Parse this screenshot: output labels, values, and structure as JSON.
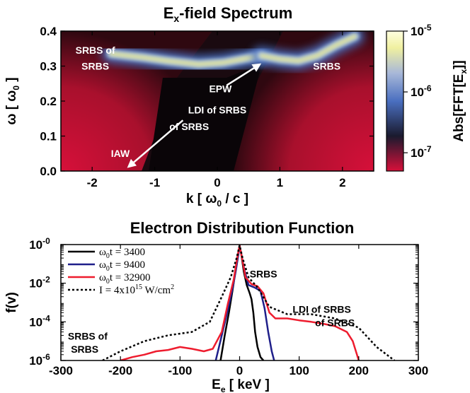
{
  "chart_data": [
    {
      "type": "heatmap",
      "title": "E",
      "title_sub": "x",
      "title_rest": "-field Spectrum",
      "xlabel": "k [ ω",
      "xlabel_sub": "0",
      "xlabel_rest": " / c ]",
      "ylabel": "ω [ ω",
      "ylabel_sub": "0",
      "ylabel_rest": " ]",
      "xlim": [
        -2.5,
        2.5
      ],
      "ylim": [
        0,
        0.4
      ],
      "x_ticks": [
        -2,
        -1,
        0,
        1,
        2
      ],
      "x_tick_labels": [
        "-2",
        "-1",
        "0",
        "1",
        "2"
      ],
      "y_ticks": [
        0.0,
        0.1,
        0.2,
        0.3,
        0.4
      ],
      "y_tick_labels": [
        "0.0",
        "0.1",
        "0.2",
        "0.3",
        "0.4"
      ],
      "colorbar": {
        "label": "Abs[FFT[E",
        "label_sub": "x",
        "label_rest": "]]",
        "scale": "log",
        "range": [
          5e-08,
          1e-05
        ],
        "ticks": [
          {
            "value": 1e-05,
            "base": "10",
            "exp": "-5"
          },
          {
            "value": 1e-06,
            "base": "10",
            "exp": "-6"
          },
          {
            "value": 1e-07,
            "base": "10",
            "exp": "-7"
          }
        ],
        "colors": [
          "#d8103a",
          "#1a1a2e",
          "#4a6fc0",
          "#a8b8d8",
          "#f0f0a0",
          "#ffffe0"
        ]
      },
      "features": [
        {
          "name": "srbs-of-srbs-branch",
          "k": [
            -1.7,
            -1.2,
            -0.8,
            -0.3,
            0.1,
            0.4,
            0.7
          ],
          "omega": [
            0.335,
            0.325,
            0.315,
            0.305,
            0.31,
            0.32,
            0.33
          ]
        },
        {
          "name": "srbs-branch",
          "k": [
            0.7,
            1.0,
            1.3,
            1.6,
            1.9,
            2.2
          ],
          "omega": [
            0.33,
            0.32,
            0.315,
            0.33,
            0.36,
            0.385
          ]
        }
      ],
      "annotations": [
        {
          "text": "SRBS of",
          "k": -1.95,
          "omega": 0.335
        },
        {
          "text": "SRBS",
          "k": -1.95,
          "omega": 0.29
        },
        {
          "text": "SRBS",
          "k": 1.75,
          "omega": 0.29
        },
        {
          "text": "EPW",
          "k": 0.05,
          "omega": 0.225
        },
        {
          "text": "LDI of SRBS",
          "k": 0.0,
          "omega": 0.165
        },
        {
          "text": "of SRBS",
          "k": -0.45,
          "omega": 0.117
        },
        {
          "text": "IAW",
          "k": -1.55,
          "omega": 0.04
        }
      ],
      "arrows": [
        {
          "from_k": 0.15,
          "from_omega": 0.245,
          "to_k": 0.68,
          "to_omega": 0.305
        },
        {
          "from_k": -0.55,
          "from_omega": 0.145,
          "to_k": -1.42,
          "to_omega": 0.012
        }
      ]
    },
    {
      "type": "line",
      "title": "Electron Distribution Function",
      "xlabel": "E",
      "xlabel_sub": "e",
      "xlabel_rest": " [ keV ]",
      "ylabel": "f(v)",
      "xlim": [
        -300,
        300
      ],
      "ylim": [
        1e-06,
        1
      ],
      "yscale": "log",
      "x_ticks": [
        -300,
        -200,
        -100,
        0,
        100,
        200,
        300
      ],
      "x_tick_labels": [
        "-300",
        "-200",
        "-100",
        "0",
        "100",
        "200",
        "300"
      ],
      "y_ticks": [
        {
          "value": 1,
          "base": "10",
          "exp": "-0"
        },
        {
          "value": 0.01,
          "base": "10",
          "exp": "-2"
        },
        {
          "value": 0.0001,
          "base": "10",
          "exp": "-4"
        },
        {
          "value": 1e-06,
          "base": "10",
          "exp": "-6"
        }
      ],
      "legend_position": "top-left",
      "series": [
        {
          "name": "t = 3400",
          "name_prefix": "ω",
          "name_sub": "0",
          "color": "#000000",
          "dash": "solid",
          "x": [
            -32,
            -25,
            -18,
            -12,
            -7,
            -3,
            0,
            3,
            7,
            12,
            17,
            20,
            23,
            26,
            30,
            35,
            40
          ],
          "y": [
            1e-06,
            2e-05,
            0.0003,
            0.004,
            0.04,
            0.3,
            0.9,
            0.3,
            0.04,
            0.008,
            0.003,
            0.0015,
            0.0003,
            3e-05,
            5e-06,
            1.5e-06,
            1e-06
          ]
        },
        {
          "name": "t = 9400",
          "name_prefix": "ω",
          "name_sub": "0",
          "color": "#1f1f8a",
          "dash": "solid",
          "x": [
            -40,
            -30,
            -20,
            -12,
            -6,
            -2,
            0,
            3,
            8,
            15,
            25,
            35,
            42,
            48,
            54,
            58
          ],
          "y": [
            1e-06,
            2e-05,
            0.0004,
            0.005,
            0.05,
            0.3,
            0.9,
            0.3,
            0.05,
            0.008,
            0.006,
            0.004,
            0.0005,
            3e-05,
            3e-06,
            1e-06
          ]
        },
        {
          "name": "t = 32900",
          "name_prefix": "ω",
          "name_sub": "0",
          "color": "#ee1c2e",
          "dash": "solid",
          "x": [
            -200,
            -180,
            -160,
            -140,
            -120,
            -100,
            -80,
            -60,
            -45,
            -30,
            -20,
            -10,
            -4,
            0,
            4,
            10,
            20,
            30,
            40,
            50,
            60,
            80,
            100,
            120,
            140,
            160,
            180,
            190,
            197,
            200
          ],
          "y": [
            1e-06,
            1.5e-06,
            2e-06,
            3e-06,
            3.5e-06,
            5e-06,
            4e-06,
            3e-06,
            4e-06,
            3e-05,
            0.0008,
            0.015,
            0.2,
            0.9,
            0.2,
            0.02,
            0.009,
            0.007,
            0.003,
            0.0003,
            0.00015,
            0.00015,
            0.00012,
            0.0001,
            8e-05,
            6e-05,
            3e-05,
            1e-05,
            2e-06,
            1e-06
          ]
        },
        {
          "name": "I = 4x10",
          "name_exp": "15",
          "name_rest": " W/cm",
          "name_exp2": "2",
          "color": "#000000",
          "dash": "dotted",
          "x": [
            -230,
            -200,
            -160,
            -120,
            -80,
            -50,
            -30,
            -15,
            -5,
            0,
            5,
            15,
            30,
            50,
            80,
            120,
            160,
            200,
            230,
            260
          ],
          "y": [
            1e-06,
            3e-06,
            1e-05,
            2e-05,
            3e-05,
            0.0001,
            0.002,
            0.02,
            0.2,
            0.9,
            0.2,
            0.02,
            0.006,
            0.0006,
            0.00025,
            0.00025,
            0.00015,
            5e-05,
            5e-06,
            1e-06
          ]
        }
      ],
      "annotations": [
        {
          "text": "SRBS",
          "x": 40,
          "y": 0.02
        },
        {
          "text": "LDI of SRBS",
          "x": 138,
          "y": 0.0003
        },
        {
          "text": "of SRBS",
          "x": 160,
          "y": 6e-05
        },
        {
          "text": "SRBS of",
          "x": -255,
          "y": 1.2e-05
        },
        {
          "text": "SRBS",
          "x": -260,
          "y": 2.5e-06
        }
      ]
    }
  ]
}
